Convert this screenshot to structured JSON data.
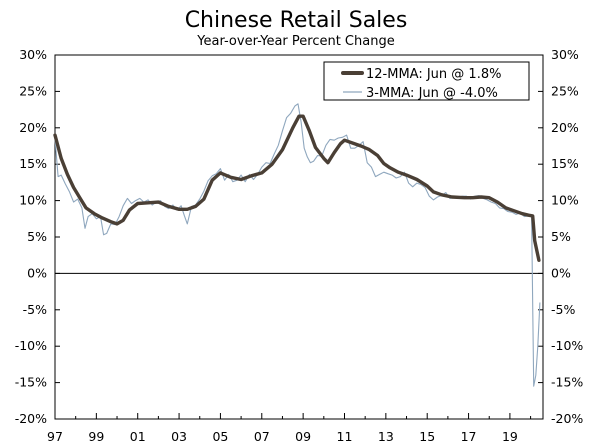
{
  "chart_data": {
    "type": "line",
    "title": "Chinese Retail Sales",
    "subtitle": "Year-over-Year Percent Change",
    "ylim": [
      -20,
      30
    ],
    "yticks": [
      30,
      25,
      20,
      15,
      10,
      5,
      0,
      -5,
      -10,
      -15,
      -20
    ],
    "ytick_labels": [
      "30%",
      "25%",
      "20%",
      "15%",
      "10%",
      "5%",
      "0%",
      "-5%",
      "-10%",
      "-15%",
      "-20%"
    ],
    "xlim": [
      1997,
      2020.6
    ],
    "xticks": [
      1997,
      1999,
      2001,
      2003,
      2005,
      2007,
      2009,
      2011,
      2013,
      2015,
      2017,
      2019
    ],
    "xtick_labels": [
      "97",
      "99",
      "01",
      "03",
      "05",
      "07",
      "09",
      "11",
      "13",
      "15",
      "17",
      "19"
    ],
    "grid": false,
    "legend_position": "top-right",
    "series": [
      {
        "name": "12-MMA: Jun @ 1.8%",
        "color": "#4a3f35",
        "points": [
          [
            1997.0,
            19.0
          ],
          [
            1997.3,
            15.8
          ],
          [
            1997.6,
            13.6
          ],
          [
            1997.9,
            11.8
          ],
          [
            1998.2,
            10.4
          ],
          [
            1998.5,
            9.0
          ],
          [
            1998.9,
            8.2
          ],
          [
            1999.3,
            7.6
          ],
          [
            1999.7,
            7.1
          ],
          [
            2000.0,
            6.8
          ],
          [
            2000.3,
            7.3
          ],
          [
            2000.6,
            8.7
          ],
          [
            2001.0,
            9.6
          ],
          [
            2001.5,
            9.7
          ],
          [
            2002.0,
            9.8
          ],
          [
            2002.5,
            9.2
          ],
          [
            2003.0,
            8.8
          ],
          [
            2003.4,
            8.8
          ],
          [
            2003.8,
            9.2
          ],
          [
            2004.2,
            10.2
          ],
          [
            2004.6,
            12.8
          ],
          [
            2005.0,
            13.8
          ],
          [
            2005.5,
            13.2
          ],
          [
            2006.0,
            12.9
          ],
          [
            2006.5,
            13.4
          ],
          [
            2007.0,
            13.8
          ],
          [
            2007.5,
            15.0
          ],
          [
            2008.0,
            17.0
          ],
          [
            2008.5,
            20.0
          ],
          [
            2008.8,
            21.6
          ],
          [
            2009.0,
            21.6
          ],
          [
            2009.3,
            19.6
          ],
          [
            2009.6,
            17.3
          ],
          [
            2010.0,
            15.8
          ],
          [
            2010.2,
            15.2
          ],
          [
            2010.5,
            16.6
          ],
          [
            2010.8,
            17.8
          ],
          [
            2011.0,
            18.3
          ],
          [
            2011.4,
            17.9
          ],
          [
            2011.8,
            17.5
          ],
          [
            2012.2,
            17.0
          ],
          [
            2012.6,
            16.2
          ],
          [
            2012.9,
            15.1
          ],
          [
            2013.2,
            14.5
          ],
          [
            2013.6,
            13.9
          ],
          [
            2014.0,
            13.5
          ],
          [
            2014.5,
            12.9
          ],
          [
            2015.0,
            12.0
          ],
          [
            2015.3,
            11.2
          ],
          [
            2015.7,
            10.8
          ],
          [
            2016.2,
            10.5
          ],
          [
            2016.8,
            10.4
          ],
          [
            2017.2,
            10.4
          ],
          [
            2017.6,
            10.5
          ],
          [
            2018.0,
            10.4
          ],
          [
            2018.4,
            9.8
          ],
          [
            2018.8,
            9.0
          ],
          [
            2019.2,
            8.6
          ],
          [
            2019.6,
            8.2
          ],
          [
            2019.9,
            8.0
          ],
          [
            2020.1,
            7.9
          ],
          [
            2020.2,
            4.5
          ],
          [
            2020.4,
            1.8
          ]
        ]
      },
      {
        "name": "3-MMA: Jun @ -4.0%",
        "color": "#8fa7be",
        "points": [
          [
            1997.0,
            18.5
          ],
          [
            1997.15,
            13.3
          ],
          [
            1997.3,
            13.5
          ],
          [
            1997.5,
            12.3
          ],
          [
            1997.7,
            11.2
          ],
          [
            1997.9,
            9.8
          ],
          [
            1998.1,
            10.2
          ],
          [
            1998.3,
            9.0
          ],
          [
            1998.45,
            6.2
          ],
          [
            1998.6,
            7.8
          ],
          [
            1998.8,
            8.2
          ],
          [
            1999.0,
            7.5
          ],
          [
            1999.2,
            7.8
          ],
          [
            1999.35,
            5.3
          ],
          [
            1999.5,
            5.5
          ],
          [
            1999.7,
            6.8
          ],
          [
            1999.9,
            6.7
          ],
          [
            2000.1,
            7.8
          ],
          [
            2000.3,
            9.3
          ],
          [
            2000.5,
            10.3
          ],
          [
            2000.7,
            9.6
          ],
          [
            2000.9,
            10.0
          ],
          [
            2001.1,
            10.3
          ],
          [
            2001.3,
            9.8
          ],
          [
            2001.5,
            10.1
          ],
          [
            2001.7,
            9.4
          ],
          [
            2001.9,
            9.8
          ],
          [
            2002.1,
            10.0
          ],
          [
            2002.3,
            9.2
          ],
          [
            2002.5,
            8.9
          ],
          [
            2002.7,
            9.4
          ],
          [
            2002.9,
            8.7
          ],
          [
            2003.1,
            9.3
          ],
          [
            2003.25,
            8.0
          ],
          [
            2003.4,
            6.8
          ],
          [
            2003.6,
            9.2
          ],
          [
            2003.8,
            9.4
          ],
          [
            2004.0,
            10.2
          ],
          [
            2004.2,
            11.3
          ],
          [
            2004.4,
            12.7
          ],
          [
            2004.6,
            13.4
          ],
          [
            2004.8,
            13.7
          ],
          [
            2005.0,
            14.4
          ],
          [
            2005.2,
            12.8
          ],
          [
            2005.4,
            13.6
          ],
          [
            2005.6,
            12.6
          ],
          [
            2005.8,
            12.8
          ],
          [
            2006.0,
            13.5
          ],
          [
            2006.2,
            12.6
          ],
          [
            2006.4,
            13.6
          ],
          [
            2006.6,
            12.9
          ],
          [
            2006.8,
            13.6
          ],
          [
            2007.0,
            14.6
          ],
          [
            2007.2,
            15.2
          ],
          [
            2007.4,
            15.1
          ],
          [
            2007.6,
            16.4
          ],
          [
            2007.8,
            17.6
          ],
          [
            2008.0,
            19.6
          ],
          [
            2008.2,
            21.4
          ],
          [
            2008.4,
            22.0
          ],
          [
            2008.6,
            23.0
          ],
          [
            2008.75,
            23.3
          ],
          [
            2008.9,
            20.8
          ],
          [
            2009.05,
            17.2
          ],
          [
            2009.2,
            16.0
          ],
          [
            2009.35,
            15.2
          ],
          [
            2009.5,
            15.4
          ],
          [
            2009.7,
            16.2
          ],
          [
            2009.9,
            16.1
          ],
          [
            2010.1,
            17.6
          ],
          [
            2010.3,
            18.4
          ],
          [
            2010.5,
            18.3
          ],
          [
            2010.7,
            18.6
          ],
          [
            2010.9,
            18.7
          ],
          [
            2011.1,
            19.0
          ],
          [
            2011.3,
            17.2
          ],
          [
            2011.5,
            17.2
          ],
          [
            2011.7,
            17.6
          ],
          [
            2011.9,
            18.1
          ],
          [
            2012.1,
            15.2
          ],
          [
            2012.3,
            14.6
          ],
          [
            2012.5,
            13.3
          ],
          [
            2012.7,
            13.6
          ],
          [
            2012.9,
            13.9
          ],
          [
            2013.1,
            13.7
          ],
          [
            2013.3,
            13.5
          ],
          [
            2013.5,
            13.1
          ],
          [
            2013.7,
            13.3
          ],
          [
            2013.9,
            13.9
          ],
          [
            2014.1,
            12.4
          ],
          [
            2014.3,
            11.9
          ],
          [
            2014.5,
            12.4
          ],
          [
            2014.7,
            12.2
          ],
          [
            2014.9,
            11.8
          ],
          [
            2015.1,
            10.6
          ],
          [
            2015.3,
            10.1
          ],
          [
            2015.5,
            10.5
          ],
          [
            2015.7,
            10.7
          ],
          [
            2015.9,
            11.1
          ],
          [
            2016.1,
            10.3
          ],
          [
            2016.3,
            10.4
          ],
          [
            2016.5,
            10.5
          ],
          [
            2016.7,
            10.6
          ],
          [
            2016.9,
            10.6
          ],
          [
            2017.1,
            10.2
          ],
          [
            2017.3,
            10.6
          ],
          [
            2017.5,
            10.7
          ],
          [
            2017.7,
            10.3
          ],
          [
            2017.9,
            10.1
          ],
          [
            2018.1,
            9.8
          ],
          [
            2018.3,
            9.6
          ],
          [
            2018.5,
            9.0
          ],
          [
            2018.7,
            8.9
          ],
          [
            2018.9,
            8.5
          ],
          [
            2019.1,
            8.4
          ],
          [
            2019.3,
            8.1
          ],
          [
            2019.5,
            8.3
          ],
          [
            2019.7,
            7.8
          ],
          [
            2019.9,
            7.9
          ],
          [
            2020.05,
            7.9
          ],
          [
            2020.15,
            -15.5
          ],
          [
            2020.25,
            -14.0
          ],
          [
            2020.35,
            -10.0
          ],
          [
            2020.45,
            -4.0
          ]
        ]
      }
    ]
  }
}
